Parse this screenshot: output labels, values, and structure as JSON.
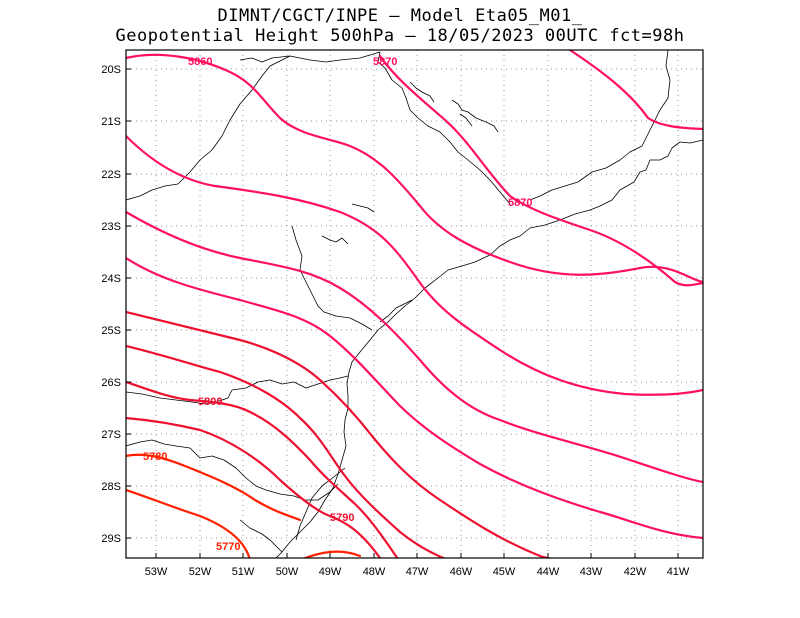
{
  "header": {
    "line1": "DIMNT/CGCT/INPE –  Model Eta05_M01_",
    "line2": "Geopotential Height 500hPa –  18/05/2023 00UTC fct=98h"
  },
  "axes": {
    "lat_labels": [
      "20S",
      "21S",
      "22S",
      "23S",
      "24S",
      "25S",
      "26S",
      "27S",
      "28S",
      "29S"
    ],
    "lon_labels": [
      "53W",
      "52W",
      "51W",
      "50W",
      "49W",
      "48W",
      "47W",
      "46W",
      "45W",
      "44W",
      "43W",
      "42W",
      "41W"
    ]
  },
  "colors": {
    "frame": "#000000",
    "grid": "#9a9a9a",
    "coast": "#000000",
    "high": "#ff1060",
    "mid": "#ee1030",
    "low": "#ff2000"
  },
  "chart_data": {
    "type": "contour-map",
    "variable": "Geopotential Height 500hPa",
    "contour_labels": [
      {
        "text": "5860"
      },
      {
        "text": "5870"
      },
      {
        "text": "5870"
      },
      {
        "text": "5800"
      },
      {
        "text": "5790"
      },
      {
        "text": "5780"
      },
      {
        "text": "5770"
      }
    ]
  }
}
